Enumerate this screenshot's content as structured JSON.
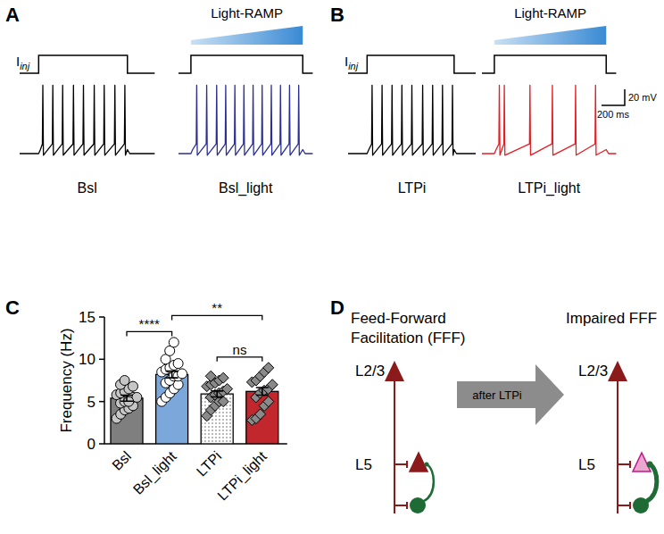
{
  "panel_labels": [
    "A",
    "B",
    "C",
    "D"
  ],
  "traces": {
    "current_label": {
      "main": "I",
      "sub": "inj"
    },
    "light_label": "Light-RAMP",
    "baseline_mv": -60,
    "spike_peak_mv": 25,
    "scale_bar": {
      "voltage": {
        "value": 20,
        "label": "20 mV"
      },
      "time": {
        "value": 200,
        "label": "200 ms"
      }
    },
    "panels": [
      {
        "traces": [
          {
            "name": "Bsl",
            "color": "#000000",
            "light": false,
            "duration_ms": 1164,
            "step_ms": [
              164,
              929
            ],
            "spike_times_ms": [
              200,
              286,
              371,
              464,
              550,
              643,
              729,
              821,
              907
            ]
          },
          {
            "name": "Bsl_light",
            "color": "#2b2f94",
            "light": true,
            "duration_ms": 1157,
            "step_ms": [
              107,
              1071
            ],
            "spike_times_ms": [
              157,
              243,
              329,
              407,
              486,
              564,
              643,
              721,
              800,
              879,
              957,
              1036
            ]
          }
        ]
      },
      {
        "traces": [
          {
            "name": "LTPi",
            "color": "#000000",
            "light": false,
            "duration_ms": 1100,
            "step_ms": [
              164,
              914
            ],
            "spike_times_ms": [
              207,
              293,
              379,
              464,
              550,
              643,
              729,
              814,
              900
            ]
          },
          {
            "name": "LTPi_light",
            "color": "#e31e24",
            "light": true,
            "duration_ms": 1157,
            "step_ms": [
              107,
              1071
            ],
            "spike_times_ms": [
              150,
              193,
              414,
              607,
              807,
              979
            ]
          }
        ]
      }
    ]
  },
  "chart_data": {
    "type": "bar",
    "y_label": "Frequency (Hz)",
    "categories": [
      "Bsl",
      "Bsl_light",
      "LTPi",
      "LTPi_light"
    ],
    "values": [
      5.4,
      8.2,
      5.9,
      6.2
    ],
    "errors": [
      0.35,
      0.4,
      0.35,
      0.45
    ],
    "colors": [
      "#7f7f7f",
      "#7ba7da",
      "#ffffff",
      "#c1272d"
    ],
    "ylim": [
      0,
      15
    ],
    "yticks": [
      0,
      5,
      10,
      15
    ],
    "points": [
      {
        "marker": "circle",
        "color": "#c6c6c6",
        "values": [
          3.0,
          3.5,
          4.0,
          4.2,
          4.5,
          4.8,
          5.0,
          5.2,
          5.5,
          5.5,
          5.8,
          6.0,
          6.2,
          6.5,
          6.8,
          7.0,
          7.5,
          5.0
        ]
      },
      {
        "marker": "circle",
        "color": "#ffffff",
        "values": [
          5.0,
          5.5,
          6.0,
          6.5,
          7.0,
          7.2,
          7.5,
          8.0,
          8.0,
          8.3,
          8.5,
          8.8,
          9.0,
          9.3,
          9.5,
          10.0,
          11.0,
          12.0
        ]
      },
      {
        "marker": "diamond",
        "color": "#8a8a8a",
        "values": [
          3.3,
          4.0,
          4.5,
          5.0,
          5.0,
          5.5,
          5.8,
          6.0,
          6.2,
          6.5,
          6.8,
          7.0,
          7.2,
          7.5,
          7.8,
          8.0
        ]
      },
      {
        "marker": "diamond",
        "color": "#8a8a8a",
        "values": [
          2.8,
          3.0,
          3.5,
          4.5,
          5.0,
          5.5,
          6.0,
          6.3,
          6.5,
          7.0,
          7.3,
          7.5,
          8.0,
          8.5,
          9.0
        ]
      }
    ],
    "significance": [
      {
        "categories": [
          0,
          1
        ],
        "label": "****"
      },
      {
        "categories": [
          1,
          3
        ],
        "label": "**"
      },
      {
        "categories": [
          2,
          3
        ],
        "label": "ns"
      }
    ]
  },
  "diagram": {
    "left": {
      "title": [
        "Feed-Forward",
        "Facilitation (FFF)"
      ],
      "layers": [
        "L2/3",
        "L5"
      ],
      "impaired": false
    },
    "arrow_label": "after LTPi",
    "right": {
      "title": [
        "Impaired FFF"
      ],
      "layers": [
        "L2/3",
        "L5"
      ],
      "impaired": true
    }
  }
}
